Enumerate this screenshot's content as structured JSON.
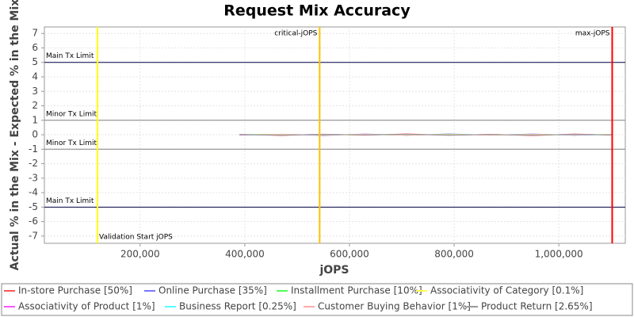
{
  "chart_data": {
    "type": "line",
    "title": "Request Mix Accuracy",
    "x_label": "jOPS",
    "y_label": "Actual % in the Mix - Expected % in the Mix",
    "xlim": [
      17000,
      1127000
    ],
    "ylim": [
      -7.5,
      7.45
    ],
    "xticks": [
      {
        "value": 200000,
        "label": "200,000"
      },
      {
        "value": 400000,
        "label": "400,000"
      },
      {
        "value": 600000,
        "label": "600,000"
      },
      {
        "value": 800000,
        "label": "800,000"
      },
      {
        "value": 1000000,
        "label": "1,000,000"
      }
    ],
    "yticks": [
      -7,
      -6,
      -5,
      -4,
      -3,
      -2,
      -1,
      0,
      1,
      2,
      3,
      4,
      5,
      6,
      7
    ],
    "grid": true,
    "x": [
      390000,
      470000,
      550000,
      630000,
      710000,
      790000,
      870000,
      950000,
      1030000,
      1100000
    ],
    "series": [
      {
        "name": "In-store Purchase [50%]",
        "color": "#ff5555",
        "values": [
          0.02,
          -0.05,
          0.04,
          -0.03,
          0.06,
          -0.04,
          0.03,
          -0.06,
          0.05,
          -0.02
        ]
      },
      {
        "name": "Online Purchase [35%]",
        "color": "#7777ff",
        "values": [
          -0.03,
          0.04,
          -0.05,
          0.05,
          -0.04,
          0.06,
          -0.03,
          0.05,
          -0.04,
          0.03
        ]
      },
      {
        "name": "Installment Purchase [10%]",
        "color": "#55ff55",
        "values": [
          0.01,
          0.03,
          -0.02,
          0.02,
          -0.03,
          0.04,
          -0.02,
          0.03,
          -0.01,
          0.02
        ]
      },
      {
        "name": "Associativity of Category [0.1%]",
        "color": "#ffff55",
        "values": [
          0,
          0.01,
          0,
          -0.01,
          0,
          0.01,
          0,
          -0.01,
          0,
          0.01
        ]
      },
      {
        "name": "Associativity of Product [1%]",
        "color": "#ff55ff",
        "values": [
          0.01,
          -0.02,
          0.02,
          -0.01,
          0.02,
          -0.02,
          0.01,
          -0.02,
          0.02,
          -0.01
        ]
      },
      {
        "name": "Business Report [0.25%]",
        "color": "#55ffff",
        "values": [
          0,
          -0.01,
          0.01,
          0,
          -0.01,
          0.01,
          0,
          0.01,
          -0.01,
          0
        ]
      },
      {
        "name": "Customer Buying Behavior [1%]",
        "color": "#ffaaaa",
        "values": [
          -0.01,
          0.02,
          -0.01,
          0.02,
          -0.02,
          0.01,
          -0.02,
          0.02,
          -0.01,
          0.01
        ]
      },
      {
        "name": "Product Return [2.65%]",
        "color": "#999999",
        "values": [
          0.02,
          -0.03,
          0.03,
          -0.02,
          0.04,
          -0.03,
          0.02,
          -0.04,
          0.03,
          -0.02
        ]
      }
    ],
    "thresholds": [
      {
        "value": 5,
        "label": "Main Tx Limit",
        "color": "#000044"
      },
      {
        "value": 1,
        "label": "Minor Tx Limit",
        "color": "#808080"
      },
      {
        "value": -1,
        "label": "Minor Tx Limit",
        "color": "#808080"
      },
      {
        "value": -5,
        "label": "Main Tx Limit",
        "color": "#000044"
      }
    ],
    "markers": [
      {
        "value": 118500,
        "label": "Validation Start jOPS",
        "color": "#ffff00",
        "label_side": "right-bottom"
      },
      {
        "value": 543000,
        "label": "critical-jOPS",
        "color": "#ffc000",
        "label_side": "left-top"
      },
      {
        "value": 1102000,
        "label": "max-jOPS",
        "color": "#ff0000",
        "label_side": "left-top"
      }
    ]
  }
}
